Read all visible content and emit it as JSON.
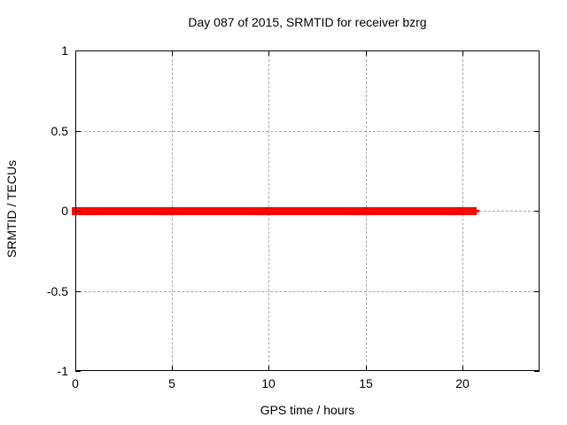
{
  "window": {
    "description": "gnuplot-style scientific plot, white background, no chrome"
  },
  "colors": {
    "background": "#ffffff",
    "axis_and_text": "#000000",
    "grid": "#a6a6a6",
    "series_red": "#ff0000"
  },
  "chart_data": {
    "type": "scatter",
    "title": "Day 087 of 2015, SRMTID for receiver bzrg",
    "xlabel": "GPS time / hours",
    "ylabel": "SRMTID / TECUs",
    "xlim": [
      0,
      24
    ],
    "ylim": [
      -1,
      1
    ],
    "xticks": [
      0,
      5,
      10,
      15,
      20
    ],
    "yticks": [
      1,
      0.5,
      0,
      -0.5,
      -1
    ],
    "grid": true,
    "grid_style": "dashed gray, drawn at every interior tick",
    "tick_style": "inward black ticks mirrored on all four borders",
    "legend": null,
    "series": [
      {
        "name": "SRMTID",
        "color": "#ff0000",
        "marker": "filled-square",
        "note": "dense points forming a solid horizontal band at y = 0",
        "segments": [
          {
            "x_start": 0.0,
            "x_end": 20.0,
            "y": 0,
            "thickness_px": 9
          },
          {
            "x_start": 20.4,
            "x_end": 20.55,
            "y": 0,
            "thickness_px": 9
          },
          {
            "x_start": 20.7,
            "x_end": 20.9,
            "y": 0,
            "thickness_px": 3
          }
        ]
      }
    ]
  }
}
